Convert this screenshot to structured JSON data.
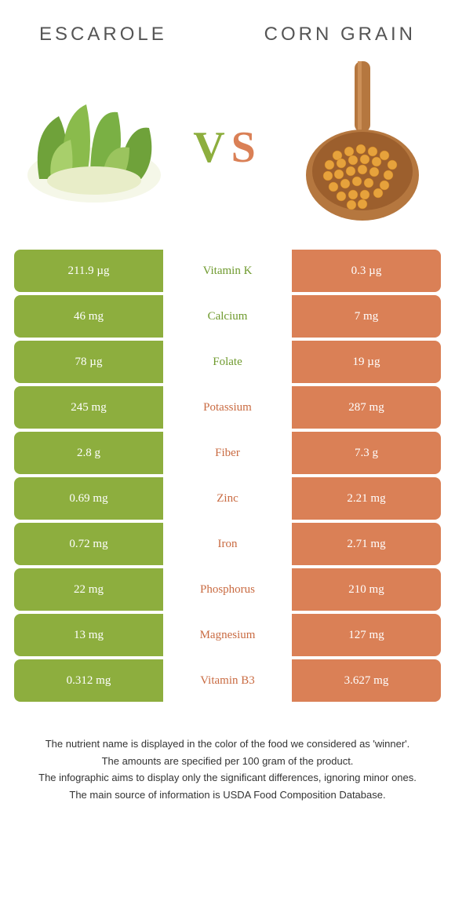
{
  "colors": {
    "green": "#8dae3e",
    "orange": "#da8056",
    "green_text": "#6f9a2e",
    "orange_text": "#c96b42",
    "title_text": "#555555",
    "footer_text": "#333333",
    "white": "#ffffff"
  },
  "header": {
    "left_title": "Escarole",
    "right_title": "Corn Grain",
    "vs_v": "V",
    "vs_s": "S"
  },
  "table": {
    "rows": [
      {
        "left": "211.9 µg",
        "label": "Vitamin K",
        "right": "0.3 µg",
        "winner": "left"
      },
      {
        "left": "46 mg",
        "label": "Calcium",
        "right": "7 mg",
        "winner": "left"
      },
      {
        "left": "78 µg",
        "label": "Folate",
        "right": "19 µg",
        "winner": "left"
      },
      {
        "left": "245 mg",
        "label": "Potassium",
        "right": "287 mg",
        "winner": "right"
      },
      {
        "left": "2.8 g",
        "label": "Fiber",
        "right": "7.3 g",
        "winner": "right"
      },
      {
        "left": "0.69 mg",
        "label": "Zinc",
        "right": "2.21 mg",
        "winner": "right"
      },
      {
        "left": "0.72 mg",
        "label": "Iron",
        "right": "2.71 mg",
        "winner": "right"
      },
      {
        "left": "22 mg",
        "label": "Phosphorus",
        "right": "210 mg",
        "winner": "right"
      },
      {
        "left": "13 mg",
        "label": "Magnesium",
        "right": "127 mg",
        "winner": "right"
      },
      {
        "left": "0.312 mg",
        "label": "Vitamin B3",
        "right": "3.627 mg",
        "winner": "right"
      }
    ]
  },
  "footer": {
    "line1": "The nutrient name is displayed in the color of the food we considered as 'winner'.",
    "line2": "The amounts are specified per 100 gram of the product.",
    "line3": "The infographic aims to display only the significant differences, ignoring minor ones.",
    "line4": "The main source of information is USDA Food Composition Database."
  }
}
